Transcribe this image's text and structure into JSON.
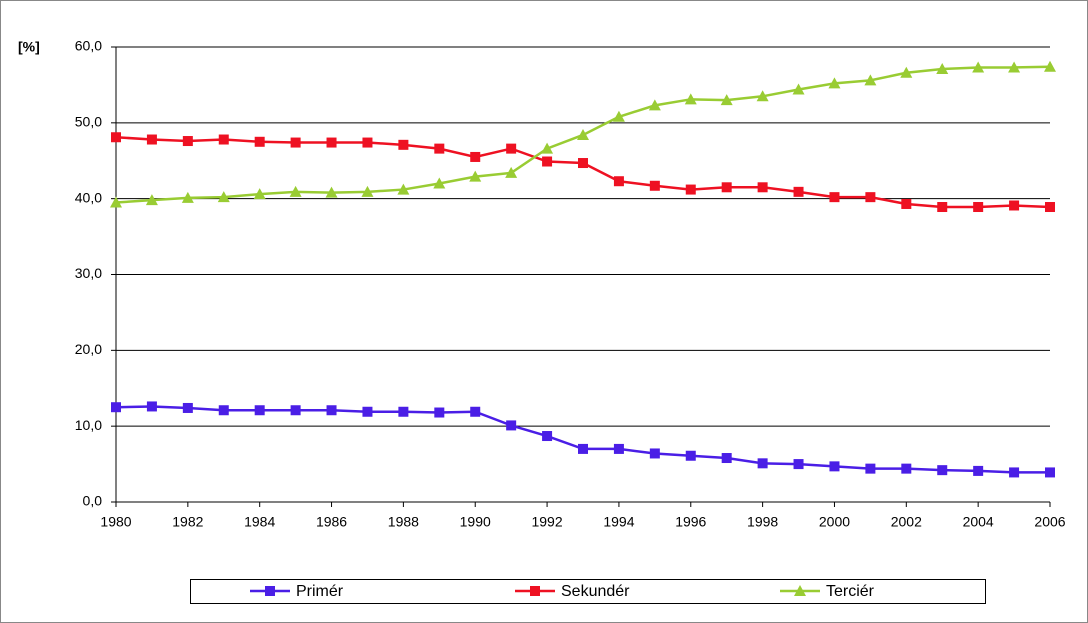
{
  "chart_data": {
    "type": "line",
    "y_label": "[%]",
    "x": [
      1980,
      1981,
      1982,
      1983,
      1984,
      1985,
      1986,
      1987,
      1988,
      1989,
      1990,
      1991,
      1992,
      1993,
      1994,
      1995,
      1996,
      1997,
      1998,
      1999,
      2000,
      2001,
      2002,
      2003,
      2004,
      2005,
      2006
    ],
    "series": [
      {
        "name": "Primér",
        "color": "#4a1ee6",
        "marker": "square",
        "values": [
          12.5,
          12.6,
          12.4,
          12.1,
          12.1,
          12.1,
          12.1,
          11.9,
          11.9,
          11.8,
          11.9,
          10.1,
          8.7,
          7.0,
          7.0,
          6.4,
          6.1,
          5.8,
          5.1,
          5.0,
          4.7,
          4.4,
          4.4,
          4.2,
          4.1,
          3.9,
          3.9
        ]
      },
      {
        "name": "Sekundér",
        "color": "#ee1122",
        "marker": "square",
        "values": [
          48.1,
          47.8,
          47.6,
          47.8,
          47.5,
          47.4,
          47.4,
          47.4,
          47.1,
          46.6,
          45.5,
          46.6,
          44.9,
          44.7,
          42.3,
          41.7,
          41.2,
          41.5,
          41.5,
          40.9,
          40.2,
          40.2,
          39.3,
          38.9,
          38.9,
          39.1,
          38.9
        ]
      },
      {
        "name": "Terciér",
        "color": "#99cc33",
        "marker": "triangle",
        "values": [
          39.5,
          39.8,
          40.1,
          40.2,
          40.6,
          40.9,
          40.8,
          40.9,
          41.2,
          42.0,
          42.9,
          43.4,
          46.6,
          48.4,
          50.8,
          52.3,
          53.1,
          53.0,
          53.5,
          54.4,
          55.2,
          55.6,
          56.6,
          57.1,
          57.3,
          57.3,
          57.4
        ]
      }
    ],
    "xlim": [
      1980,
      2006
    ],
    "xticks": [
      1980,
      1982,
      1984,
      1986,
      1988,
      1990,
      1992,
      1994,
      1996,
      1998,
      2000,
      2002,
      2004,
      2006
    ],
    "ylim": [
      0,
      60
    ],
    "yticks": [
      {
        "value": 0,
        "label": "0,0"
      },
      {
        "value": 10,
        "label": "10,0"
      },
      {
        "value": 20,
        "label": "20,0"
      },
      {
        "value": 30,
        "label": "30,0"
      },
      {
        "value": 40,
        "label": "40,0"
      },
      {
        "value": 50,
        "label": "50,0"
      },
      {
        "value": 60,
        "label": "60,0"
      }
    ],
    "grid": true,
    "legend": "bottom"
  }
}
